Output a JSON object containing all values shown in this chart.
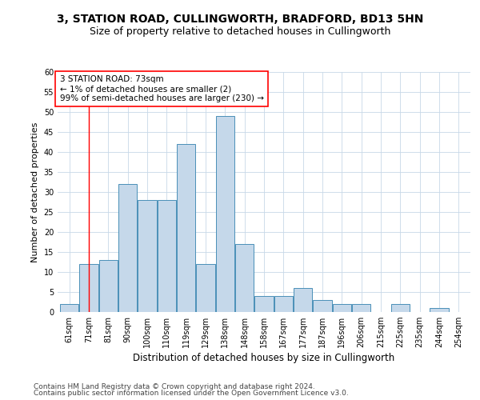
{
  "title1": "3, STATION ROAD, CULLINGWORTH, BRADFORD, BD13 5HN",
  "title2": "Size of property relative to detached houses in Cullingworth",
  "xlabel": "Distribution of detached houses by size in Cullingworth",
  "ylabel": "Number of detached properties",
  "categories": [
    "61sqm",
    "71sqm",
    "81sqm",
    "90sqm",
    "100sqm",
    "110sqm",
    "119sqm",
    "129sqm",
    "138sqm",
    "148sqm",
    "158sqm",
    "167sqm",
    "177sqm",
    "187sqm",
    "196sqm",
    "206sqm",
    "215sqm",
    "225sqm",
    "235sqm",
    "244sqm",
    "254sqm"
  ],
  "values": [
    2,
    12,
    13,
    32,
    28,
    28,
    42,
    12,
    49,
    17,
    4,
    4,
    6,
    3,
    2,
    2,
    0,
    2,
    0,
    1,
    0
  ],
  "bar_color": "#c5d8ea",
  "bar_edge_color": "#4a90b8",
  "grid_color": "#c8d8e8",
  "annotation_box_text": "3 STATION ROAD: 73sqm\n← 1% of detached houses are smaller (2)\n99% of semi-detached houses are larger (230) →",
  "ylim": [
    0,
    60
  ],
  "yticks": [
    0,
    5,
    10,
    15,
    20,
    25,
    30,
    35,
    40,
    45,
    50,
    55,
    60
  ],
  "footnote1": "Contains HM Land Registry data © Crown copyright and database right 2024.",
  "footnote2": "Contains public sector information licensed under the Open Government Licence v3.0.",
  "title_fontsize": 10,
  "subtitle_fontsize": 9,
  "axis_label_fontsize": 8.5,
  "tick_fontsize": 7,
  "annotation_fontsize": 7.5,
  "footnote_fontsize": 6.5,
  "ylabel_fontsize": 8
}
